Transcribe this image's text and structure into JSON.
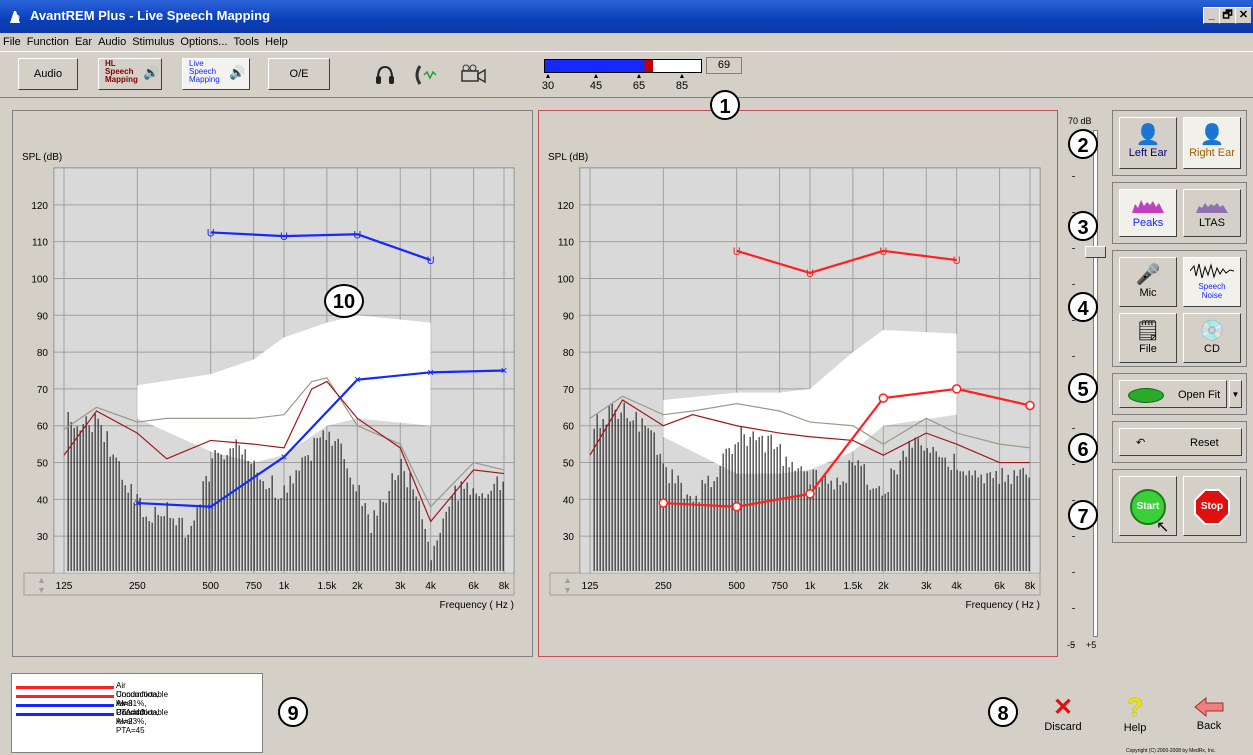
{
  "window": {
    "title": "AvantREM Plus - Live Speech Mapping",
    "controls": [
      "_",
      "🗗",
      "✕"
    ]
  },
  "menu": [
    "File",
    "Function",
    "Ear",
    "Audio",
    "Stimulus",
    "Options...",
    "Tools",
    "Help"
  ],
  "toolbar": {
    "audio": "Audio",
    "hl_mapping": [
      "HL",
      "Speech",
      "Mapping"
    ],
    "live_mapping": [
      "Live",
      "Speech",
      "Mapping"
    ],
    "oe": "O/E",
    "level_meter": {
      "value": 69,
      "fill": 0.69,
      "ticks": [
        "30",
        "45",
        "65",
        "85"
      ]
    }
  },
  "callouts": [
    "1",
    "2",
    "3",
    "4",
    "5",
    "6",
    "7",
    "8",
    "9",
    "10"
  ],
  "graphs": {
    "ylabel": "SPL (dB)",
    "xlabel": "Frequency ( Hz )",
    "y_ticks": [
      "120",
      "110",
      "100",
      "90",
      "80",
      "70",
      "60",
      "50",
      "40",
      "30"
    ],
    "x_ticks": [
      "125",
      "250",
      "500",
      "750",
      "1k",
      "1.5k",
      "2k",
      "3k",
      "4k",
      "6k",
      "8k"
    ]
  },
  "chart_data": [
    {
      "type": "line",
      "title": "Left ear",
      "x": [
        125,
        250,
        500,
        750,
        1000,
        1500,
        2000,
        3000,
        4000,
        6000,
        8000
      ],
      "ylim": [
        20,
        130
      ],
      "series": [
        {
          "name": "Air Conduction, AI=23%, PTA=45",
          "color": "#1428ff",
          "marker": "x",
          "points": [
            [
              250,
              39
            ],
            [
              500,
              38
            ],
            [
              1000,
              51.5
            ],
            [
              2000,
              72.5
            ],
            [
              4000,
              74.5
            ],
            [
              8000,
              75
            ]
          ]
        },
        {
          "name": "Uncomfortable level",
          "color": "#1428ff",
          "marker": "U",
          "points": [
            [
              500,
              112.5
            ],
            [
              1000,
              111.5
            ],
            [
              2000,
              112
            ],
            [
              4000,
              105
            ]
          ]
        }
      ]
    },
    {
      "type": "line",
      "title": "Right ear",
      "x": [
        125,
        250,
        500,
        750,
        1000,
        1500,
        2000,
        3000,
        4000,
        6000,
        8000
      ],
      "ylim": [
        20,
        130
      ],
      "series": [
        {
          "name": "Air Conduction, AI=31%, PTA=40",
          "color": "#ff2020",
          "marker": "o",
          "points": [
            [
              250,
              39
            ],
            [
              500,
              38
            ],
            [
              1000,
              41.5
            ],
            [
              2000,
              67.5
            ],
            [
              4000,
              70
            ],
            [
              8000,
              65.5
            ]
          ]
        },
        {
          "name": "Uncomfortable level",
          "color": "#ff2020",
          "marker": "U",
          "points": [
            [
              500,
              107.5
            ],
            [
              1000,
              101.5
            ],
            [
              2000,
              107.5
            ],
            [
              4000,
              105
            ]
          ]
        }
      ]
    }
  ],
  "slider": {
    "top_label": "70 dB",
    "bottom_left": "-5",
    "bottom_right": "+5"
  },
  "right_panel": {
    "left_ear": "Left Ear",
    "right_ear": "Right Ear",
    "peaks": "Peaks",
    "ltas": "LTAS",
    "mic": "Mic",
    "speech_noise": [
      "Speech",
      "Noise"
    ],
    "file": "File",
    "cd": "CD",
    "openfit": "Open Fit",
    "reset": "Reset",
    "start": "Start",
    "stop": "Stop"
  },
  "legend": [
    {
      "color": "#ff2020",
      "text": "Air Conduction, AI=31%, PTA=40"
    },
    {
      "color": "#ff2020",
      "text": "Uncomfortable level"
    },
    {
      "color": "#1428ff",
      "text": "Air Conduction, AI=23%, PTA=45"
    },
    {
      "color": "#1428ff",
      "text": "Uncomfortable level"
    }
  ],
  "bottom": {
    "discard": "Discard",
    "help": "Help",
    "back": "Back",
    "copyright": "Copyright (C) 2000-2008 by MedRx, Inc."
  }
}
